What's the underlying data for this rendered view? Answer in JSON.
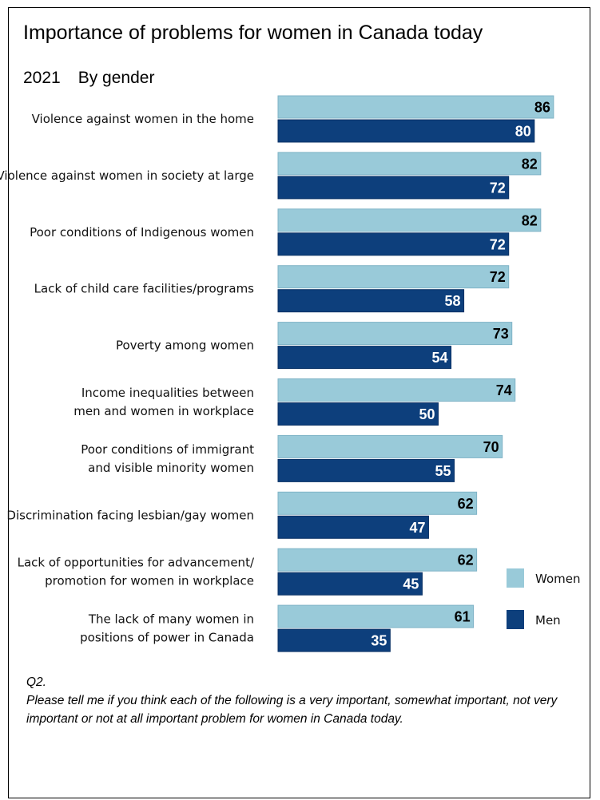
{
  "title": "Importance of problems for women in Canada today",
  "subtitle": {
    "year": "2021",
    "group": "By gender"
  },
  "colors": {
    "women": "#99cad9",
    "men": "#0d3f7c",
    "women_label": "#000000",
    "men_label": "#ffffff"
  },
  "chart_data": {
    "type": "bar",
    "orientation": "horizontal",
    "categories": [
      [
        "Violence against women in the home"
      ],
      [
        "Violence against women in society at large"
      ],
      [
        "Poor conditions of Indigenous women"
      ],
      [
        "Lack of child care facilities/programs"
      ],
      [
        "Poverty among women"
      ],
      [
        "Income inequalities between",
        "men and women in workplace"
      ],
      [
        "Poor conditions of immigrant",
        "and visible minority women"
      ],
      [
        "Discrimination facing lesbian/gay women"
      ],
      [
        "Lack of opportunities for advancement/",
        "promotion for women in workplace"
      ],
      [
        "The lack of many women in",
        "positions of power in Canada"
      ]
    ],
    "series": [
      {
        "name": "Women",
        "values": [
          86,
          82,
          82,
          72,
          73,
          74,
          70,
          62,
          62,
          61
        ]
      },
      {
        "name": "Men",
        "values": [
          80,
          72,
          72,
          58,
          54,
          50,
          55,
          47,
          45,
          35
        ]
      }
    ],
    "xlim": [
      0,
      100
    ],
    "grid": false,
    "legend": "bottom-right",
    "data_labels": true
  },
  "footnote": {
    "question": "Q2.",
    "text": "Please tell me if you think each of the following is a very important, somewhat important, not very important or not at all important problem for women in Canada today."
  }
}
